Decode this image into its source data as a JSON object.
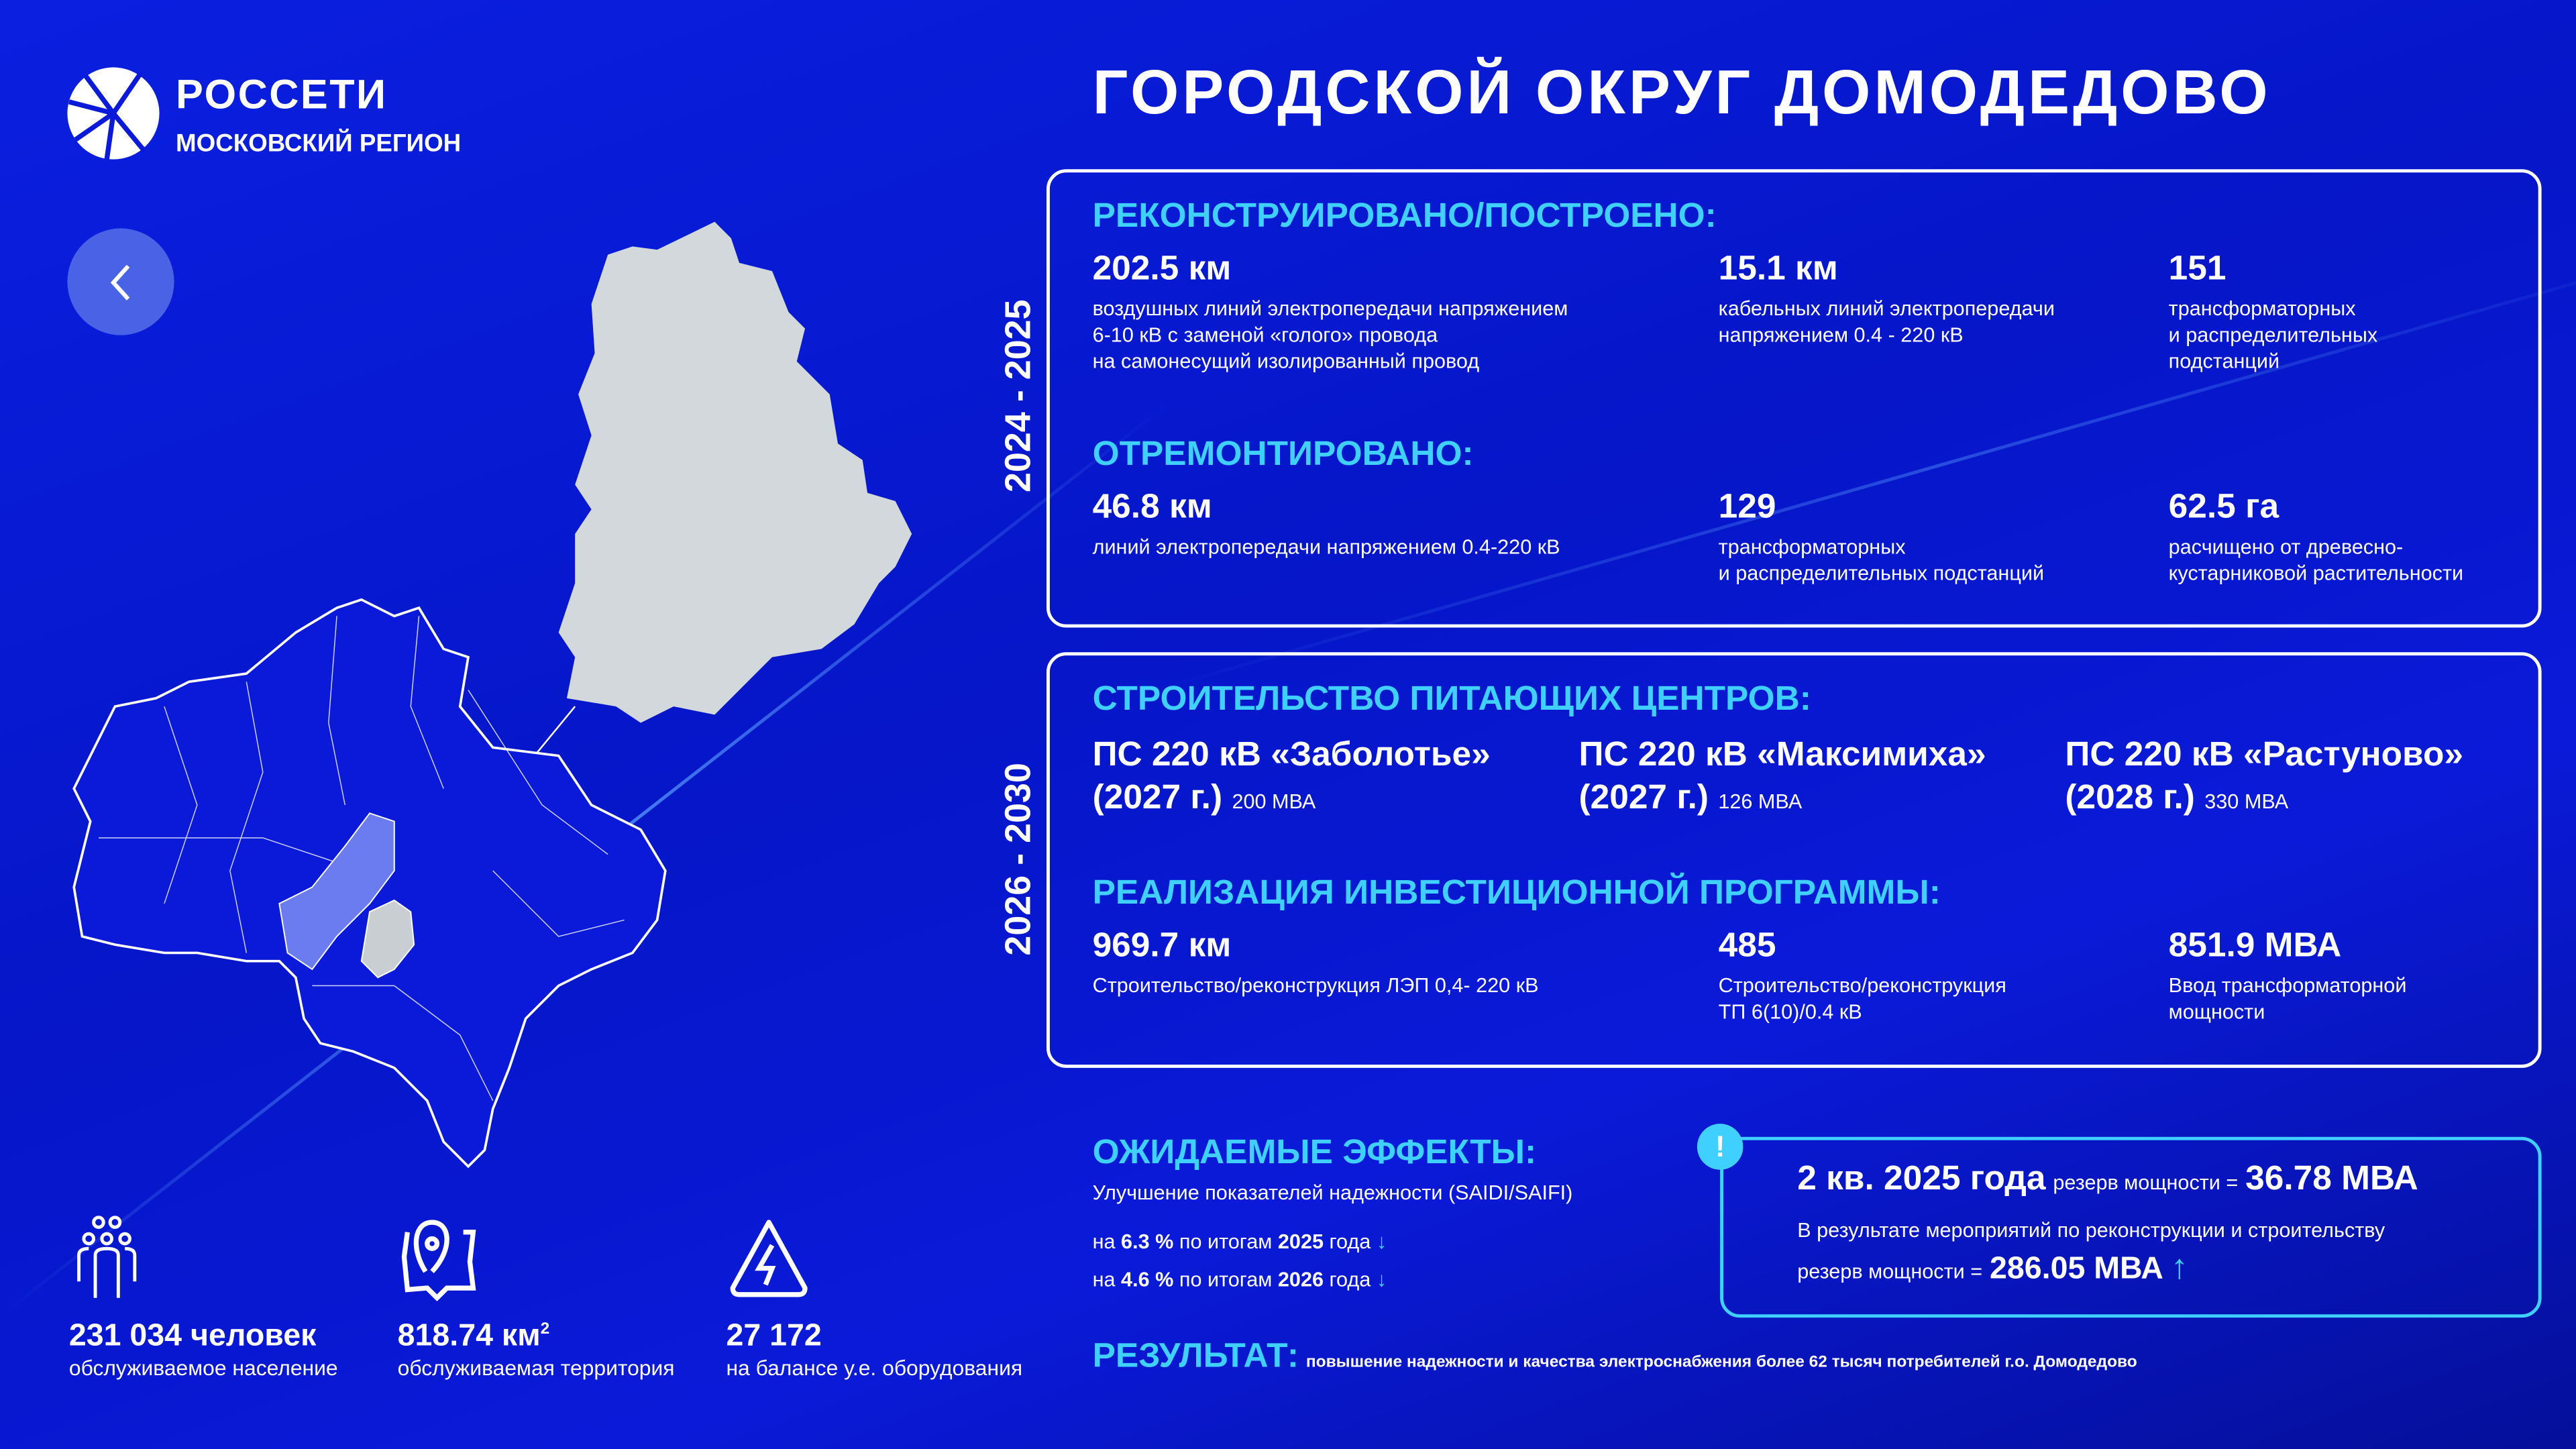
{
  "logo": {
    "name": "РОССЕТИ",
    "region": "МОСКОВСКИЙ РЕГИОН"
  },
  "title": "ГОРОДСКОЙ ОКРУГ ДОМОДЕДОВО",
  "back_button": "back",
  "period1": {
    "years": "2024 - 2025",
    "built": {
      "heading": "РЕКОНСТРУИРОВАНО/ПОСТРОЕНО:",
      "items": [
        {
          "value": "202.5 км",
          "desc": [
            "воздушных линий электропередачи напряжением",
            "6-10 кВ с заменой «голого» провода",
            "на самонесущий изолированный провод"
          ]
        },
        {
          "value": "15.1 км",
          "desc": [
            "кабельных линий электропередачи",
            "напряжением 0.4 - 220 кВ"
          ]
        },
        {
          "value": "151",
          "desc": [
            "трансформаторных",
            "и распределительных",
            "подстанций"
          ]
        }
      ]
    },
    "repaired": {
      "heading": "ОТРЕМОНТИРОВАНО:",
      "items": [
        {
          "value": "46.8 км",
          "desc": [
            "линий электропередачи напряжением 0.4-220 кВ"
          ]
        },
        {
          "value": "129",
          "desc": [
            "трансформаторных",
            "и распределительных подстанций"
          ]
        },
        {
          "value": "62.5 га",
          "desc": [
            "расчищено от древесно-",
            "кустарниковой растительности"
          ]
        }
      ]
    }
  },
  "period2": {
    "years": "2026 - 2030",
    "centers": {
      "heading": "СТРОИТЕЛЬСТВО ПИТАЮЩИХ ЦЕНТРОВ:",
      "items": [
        {
          "name": "ПС 220 кВ «Заболотье»",
          "year": "(2027 г.)",
          "power": "200 МВА"
        },
        {
          "name": "ПС 220 кВ «Максимиха»",
          "year": "(2027 г.)",
          "power": "126 МВА"
        },
        {
          "name": "ПС 220 кВ «Растуново»",
          "year": "(2028 г.)",
          "power": "330 МВА"
        }
      ]
    },
    "invest": {
      "heading": "РЕАЛИЗАЦИЯ ИНВЕСТИЦИОННОЙ ПРОГРАММЫ:",
      "items": [
        {
          "value": "969.7 км",
          "desc": [
            "Строительство/реконструкция ЛЭП 0,4- 220 кВ"
          ]
        },
        {
          "value": "485",
          "desc": [
            "Строительство/реконструкция",
            "ТП 6(10)/0.4 кВ"
          ]
        },
        {
          "value": "851.9 МВА",
          "desc": [
            "Ввод трансформаторной",
            "мощности"
          ]
        }
      ]
    }
  },
  "effects": {
    "heading": "ОЖИДАЕМЫЕ ЭФФЕКТЫ:",
    "subtitle": "Улучшение показателей надежности (SAIDI/SAIFI)",
    "rows": [
      {
        "pre": "на",
        "pct": "6.3 %",
        "mid": "по итогам",
        "year": "2025",
        "post": "года",
        "arrow": "↓"
      },
      {
        "pre": "на",
        "pct": "4.6 %",
        "mid": "по итогам",
        "year": "2026",
        "post": "года",
        "arrow": "↓"
      }
    ]
  },
  "reserve": {
    "icon": "!",
    "period": "2 кв. 2025 года",
    "label": "резерв мощности =",
    "value": "36.78 МВА",
    "note": "В результате мероприятий по реконструкции и строительству",
    "label2": "резерв мощности =",
    "value2": "286.05 МВА",
    "arrow": "↑"
  },
  "result": {
    "label": "РЕЗУЛЬТАТ:",
    "text": "повышение надежности и качества электроснабжения более 62 тысяч потребителей г.о. Домодедово"
  },
  "stats": [
    {
      "icon": "people-icon",
      "value": "231 034 человек",
      "label": "обслуживаемое население"
    },
    {
      "icon": "map-pin-icon",
      "value": "818.74 км",
      "sup": "2",
      "label": "обслуживаемая территория"
    },
    {
      "icon": "lightning-icon",
      "value": "27 172",
      "label": "на балансе у.е. оборудования"
    }
  ],
  "colors": {
    "accent": "#3fd0ff",
    "bg": "#0a1ad8"
  }
}
